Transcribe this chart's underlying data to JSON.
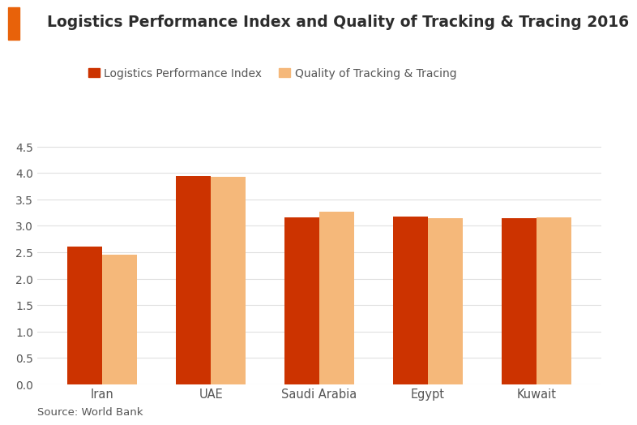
{
  "title": "Logistics Performance Index and Quality of Tracking & Tracing 2016",
  "title_color": "#2d2d2d",
  "title_fontsize": 13.5,
  "categories": [
    "Iran",
    "UAE",
    "Saudi Arabia",
    "Egypt",
    "Kuwait"
  ],
  "lpi_values": [
    2.61,
    3.94,
    3.16,
    3.18,
    3.15
  ],
  "tracking_values": [
    2.45,
    3.92,
    3.27,
    3.14,
    3.16
  ],
  "lpi_color": "#CC3300",
  "tracking_color": "#F5B87A",
  "legend_lpi": "Logistics Performance Index",
  "legend_tracking": "Quality of Tracking & Tracing",
  "ylim": [
    0,
    4.75
  ],
  "yticks": [
    0,
    0.5,
    1.0,
    1.5,
    2.0,
    2.5,
    3.0,
    3.5,
    4.0,
    4.5
  ],
  "source_text": "Source: World Bank",
  "bar_width": 0.32,
  "background_color": "#ffffff",
  "grid_color": "#e0e0e0",
  "accent_color": "#E8620A"
}
